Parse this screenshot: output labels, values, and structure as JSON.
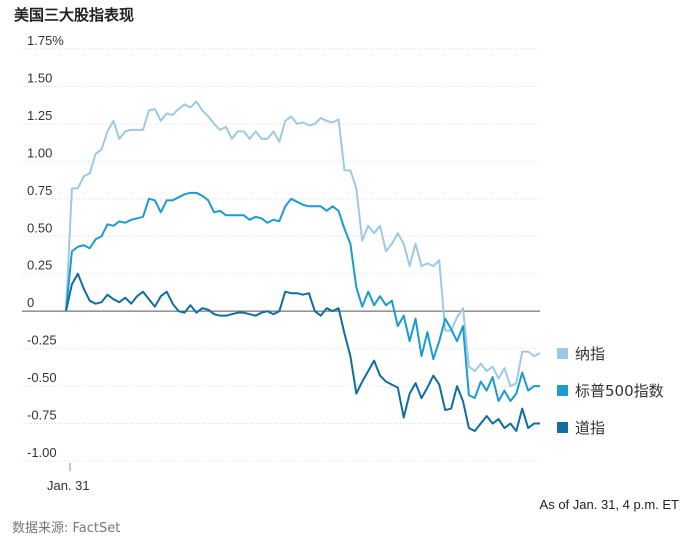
{
  "title": "美国三大股指表现",
  "source": "数据来源: FactSet",
  "as_of": "As of Jan. 31, 4 p.m. ET",
  "chart_data": {
    "type": "line",
    "y_ticks": [
      "1.75%",
      "1.50",
      "1.25",
      "1.00",
      "0.75",
      "0.50",
      "0.25",
      "0",
      "-0.25",
      "-0.50",
      "-0.75",
      "-1.00"
    ],
    "y_tick_values": [
      1.75,
      1.5,
      1.25,
      1.0,
      0.75,
      0.5,
      0.25,
      0,
      -0.25,
      -0.5,
      -0.75,
      -1.0
    ],
    "ylim": [
      -1.0,
      1.75
    ],
    "x_tick_label": "Jan. 31",
    "legend_placement": "right",
    "series": [
      {
        "name": "纳指",
        "color": "#9dc9e6",
        "values": [
          0,
          0.82,
          0.82,
          0.9,
          0.92,
          1.05,
          1.08,
          1.2,
          1.27,
          1.15,
          1.2,
          1.21,
          1.21,
          1.21,
          1.34,
          1.35,
          1.27,
          1.32,
          1.31,
          1.35,
          1.38,
          1.36,
          1.4,
          1.34,
          1.3,
          1.25,
          1.21,
          1.23,
          1.15,
          1.2,
          1.2,
          1.15,
          1.2,
          1.15,
          1.15,
          1.2,
          1.13,
          1.27,
          1.3,
          1.25,
          1.26,
          1.24,
          1.25,
          1.29,
          1.27,
          1.26,
          1.28,
          0.94,
          0.94,
          0.82,
          0.47,
          0.57,
          0.52,
          0.57,
          0.4,
          0.45,
          0.52,
          0.45,
          0.3,
          0.45,
          0.3,
          0.32,
          0.3,
          0.34,
          -0.13,
          -0.13,
          -0.04,
          0.02,
          -0.37,
          -0.4,
          -0.35,
          -0.4,
          -0.37,
          -0.45,
          -0.38,
          -0.5,
          -0.48,
          -0.27,
          -0.27,
          -0.3,
          -0.28
        ]
      },
      {
        "name": "标普500指数",
        "color": "#1b9bd1",
        "values": [
          0,
          0.4,
          0.43,
          0.44,
          0.42,
          0.48,
          0.5,
          0.58,
          0.57,
          0.6,
          0.59,
          0.61,
          0.62,
          0.63,
          0.75,
          0.74,
          0.66,
          0.74,
          0.74,
          0.76,
          0.78,
          0.79,
          0.79,
          0.77,
          0.74,
          0.66,
          0.67,
          0.64,
          0.64,
          0.64,
          0.64,
          0.61,
          0.63,
          0.62,
          0.59,
          0.61,
          0.6,
          0.7,
          0.75,
          0.73,
          0.71,
          0.7,
          0.7,
          0.7,
          0.67,
          0.7,
          0.67,
          0.55,
          0.45,
          0.16,
          0.03,
          0.13,
          0.04,
          0.1,
          0.04,
          0.07,
          -0.1,
          -0.03,
          -0.2,
          -0.05,
          -0.3,
          -0.14,
          -0.32,
          -0.2,
          -0.05,
          -0.12,
          -0.2,
          -0.1,
          -0.56,
          -0.58,
          -0.47,
          -0.53,
          -0.44,
          -0.6,
          -0.53,
          -0.6,
          -0.55,
          -0.41,
          -0.53,
          -0.5,
          -0.5
        ]
      },
      {
        "name": "道指",
        "color": "#106ea0",
        "values": [
          0,
          0.18,
          0.25,
          0.15,
          0.07,
          0.05,
          0.06,
          0.11,
          0.08,
          0.06,
          0.09,
          0.05,
          0.1,
          0.13,
          0.08,
          0.03,
          0.1,
          0.13,
          0.05,
          0.0,
          -0.01,
          0.04,
          -0.01,
          0.02,
          0.01,
          -0.02,
          -0.03,
          -0.03,
          -0.02,
          -0.01,
          -0.01,
          -0.02,
          -0.03,
          -0.01,
          0.0,
          -0.02,
          0.0,
          0.13,
          0.12,
          0.12,
          0.11,
          0.12,
          0.0,
          -0.03,
          0.02,
          0.0,
          0.02,
          -0.15,
          -0.3,
          -0.55,
          -0.47,
          -0.4,
          -0.33,
          -0.43,
          -0.47,
          -0.49,
          -0.51,
          -0.71,
          -0.55,
          -0.48,
          -0.58,
          -0.51,
          -0.43,
          -0.49,
          -0.66,
          -0.65,
          -0.5,
          -0.6,
          -0.78,
          -0.8,
          -0.75,
          -0.7,
          -0.75,
          -0.72,
          -0.78,
          -0.75,
          -0.8,
          -0.65,
          -0.78,
          -0.75,
          -0.75
        ]
      }
    ]
  }
}
